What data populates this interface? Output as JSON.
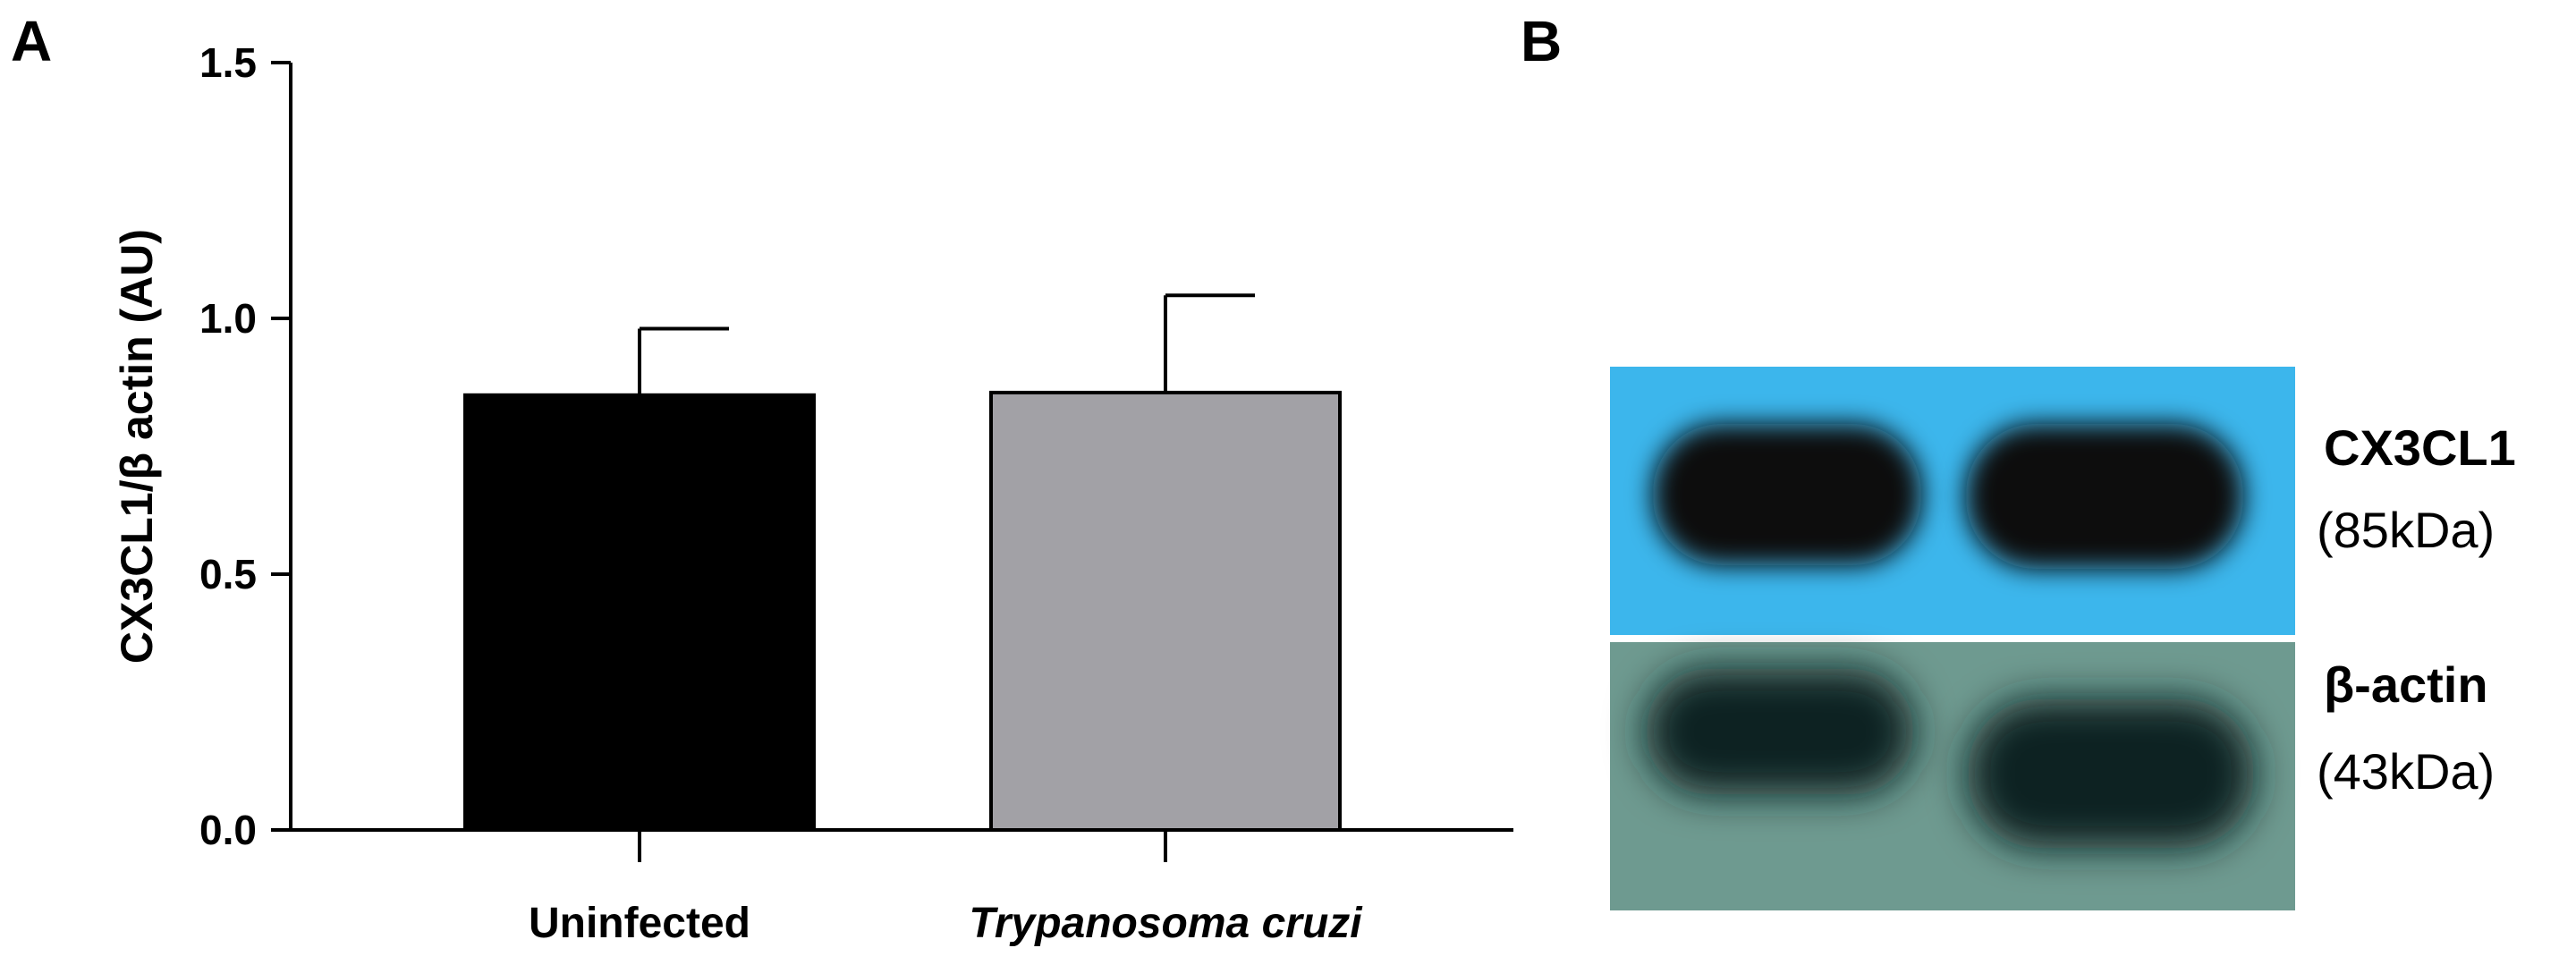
{
  "panels": {
    "a_letter": "A",
    "b_letter": "B"
  },
  "chart_data": {
    "type": "bar",
    "ylabel": "CX3CL1/β actin (AU)",
    "xlabel": "",
    "categories": [
      "Uninfected",
      "Trypanosoma cruzi"
    ],
    "category_italic": [
      false,
      true
    ],
    "values": [
      0.85,
      0.855
    ],
    "errors": [
      0.13,
      0.19
    ],
    "bar_colors": [
      "#000000",
      "#a2a1a6"
    ],
    "ylim": [
      0,
      1.5
    ],
    "yticks": [
      0.0,
      0.5,
      1.0,
      1.5
    ],
    "ytick_labels": [
      "0.0",
      "0.5",
      "1.0",
      "1.5"
    ],
    "grid": false,
    "legend": "none"
  },
  "blot": {
    "bands": [
      {
        "name": "CX3CL1",
        "size": "(85kDa)",
        "background": "#3cb6ec",
        "band_color": "#070c10"
      },
      {
        "name": "β-actin",
        "size": "(43kDa)",
        "background": "#6e9a90",
        "band_color": "#0e2320"
      }
    ]
  }
}
